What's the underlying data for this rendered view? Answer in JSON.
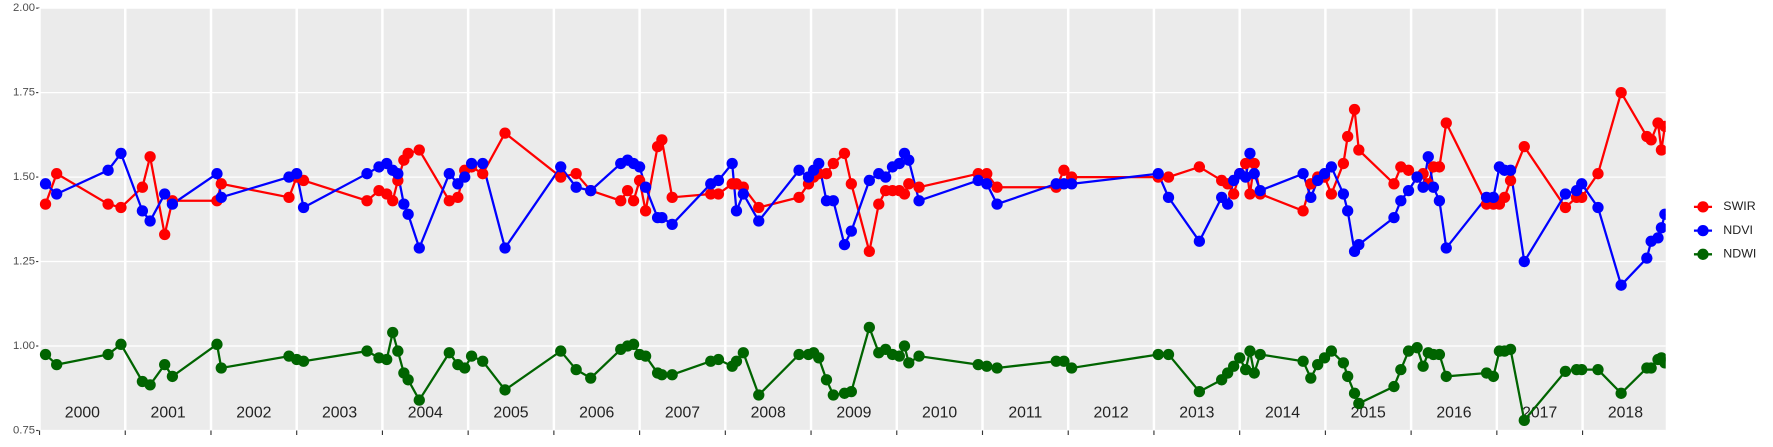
{
  "chart_data": {
    "type": "line",
    "x": [
      2000.07,
      2000.2,
      2000.8,
      2000.95,
      2001.2,
      2001.29,
      2001.46,
      2001.55,
      2002.07,
      2002.12,
      2002.91,
      2003.0,
      2003.08,
      2003.82,
      2003.96,
      2004.05,
      2004.12,
      2004.18,
      2004.25,
      2004.3,
      2004.43,
      2004.78,
      2004.88,
      2004.96,
      2005.04,
      2005.17,
      2005.43,
      2006.08,
      2006.26,
      2006.43,
      2006.78,
      2006.86,
      2006.93,
      2007.0,
      2007.07,
      2007.21,
      2007.26,
      2007.38,
      2007.83,
      2007.92,
      2008.08,
      2008.13,
      2008.21,
      2008.39,
      2008.86,
      2008.97,
      2009.03,
      2009.09,
      2009.18,
      2009.26,
      2009.39,
      2009.47,
      2009.68,
      2009.79,
      2009.87,
      2009.95,
      2010.03,
      2010.09,
      2010.14,
      2010.26,
      2010.95,
      2011.05,
      2011.17,
      2011.86,
      2011.95,
      2012.04,
      2013.05,
      2013.17,
      2013.53,
      2013.79,
      2013.86,
      2013.93,
      2014.0,
      2014.07,
      2014.12,
      2014.17,
      2014.24,
      2014.74,
      2014.83,
      2014.91,
      2014.99,
      2015.07,
      2015.21,
      2015.26,
      2015.34,
      2015.39,
      2015.8,
      2015.88,
      2015.97,
      2016.07,
      2016.14,
      2016.2,
      2016.26,
      2016.33,
      2016.41,
      2016.88,
      2016.96,
      2017.03,
      2017.09,
      2017.16,
      2017.32,
      2017.8,
      2017.93,
      2017.99,
      2018.18,
      2018.45,
      2018.75,
      2018.8,
      2018.88,
      2018.92,
      2018.96
    ],
    "series": [
      {
        "name": "SWIR",
        "color": "#ff0000",
        "values": [
          1.42,
          1.51,
          1.42,
          1.41,
          1.47,
          1.56,
          1.33,
          1.43,
          1.43,
          1.48,
          1.44,
          1.5,
          1.49,
          1.43,
          1.46,
          1.45,
          1.43,
          1.49,
          1.55,
          1.57,
          1.58,
          1.43,
          1.44,
          1.52,
          1.53,
          1.51,
          1.63,
          1.5,
          1.51,
          1.46,
          1.43,
          1.46,
          1.43,
          1.49,
          1.4,
          1.59,
          1.61,
          1.44,
          1.45,
          1.45,
          1.48,
          1.48,
          1.47,
          1.41,
          1.44,
          1.48,
          1.5,
          1.51,
          1.51,
          1.54,
          1.57,
          1.48,
          1.28,
          1.42,
          1.46,
          1.46,
          1.46,
          1.45,
          1.48,
          1.47,
          1.51,
          1.51,
          1.47,
          1.47,
          1.52,
          1.5,
          1.5,
          1.5,
          1.53,
          1.49,
          1.48,
          1.45,
          1.51,
          1.54,
          1.45,
          1.54,
          1.45,
          1.4,
          1.48,
          1.5,
          1.5,
          1.45,
          1.54,
          1.62,
          1.7,
          1.58,
          1.48,
          1.53,
          1.52,
          1.5,
          1.51,
          1.48,
          1.53,
          1.53,
          1.66,
          1.42,
          1.42,
          1.42,
          1.44,
          1.49,
          1.59,
          1.41,
          1.44,
          1.44,
          1.51,
          1.75,
          1.62,
          1.61,
          1.66,
          1.58,
          1.65
        ]
      },
      {
        "name": "NDVI",
        "color": "#0000ff",
        "values": [
          1.48,
          1.45,
          1.52,
          1.57,
          1.4,
          1.37,
          1.45,
          1.42,
          1.51,
          1.44,
          1.5,
          1.51,
          1.41,
          1.51,
          1.53,
          1.54,
          1.52,
          1.51,
          1.42,
          1.39,
          1.29,
          1.51,
          1.48,
          1.5,
          1.54,
          1.54,
          1.29,
          1.53,
          1.47,
          1.46,
          1.54,
          1.55,
          1.54,
          1.53,
          1.47,
          1.38,
          1.38,
          1.36,
          1.48,
          1.49,
          1.54,
          1.4,
          1.45,
          1.37,
          1.52,
          1.5,
          1.52,
          1.54,
          1.43,
          1.43,
          1.3,
          1.34,
          1.49,
          1.51,
          1.5,
          1.53,
          1.54,
          1.57,
          1.55,
          1.43,
          1.49,
          1.48,
          1.42,
          1.48,
          1.48,
          1.48,
          1.51,
          1.44,
          1.31,
          1.44,
          1.42,
          1.49,
          1.51,
          1.5,
          1.57,
          1.51,
          1.46,
          1.51,
          1.44,
          1.49,
          1.51,
          1.53,
          1.45,
          1.4,
          1.28,
          1.3,
          1.38,
          1.43,
          1.46,
          1.5,
          1.47,
          1.56,
          1.47,
          1.43,
          1.29,
          1.44,
          1.44,
          1.53,
          1.52,
          1.52,
          1.25,
          1.45,
          1.46,
          1.48,
          1.41,
          1.18,
          1.26,
          1.31,
          1.32,
          1.35,
          1.39
        ]
      },
      {
        "name": "NDWI",
        "color": "#006400",
        "values": [
          0.975,
          0.945,
          0.975,
          1.005,
          0.895,
          0.885,
          0.945,
          0.91,
          1.005,
          0.935,
          0.97,
          0.96,
          0.955,
          0.985,
          0.965,
          0.96,
          1.04,
          0.985,
          0.92,
          0.9,
          0.84,
          0.98,
          0.945,
          0.935,
          0.97,
          0.955,
          0.87,
          0.985,
          0.93,
          0.905,
          0.99,
          1.0,
          1.005,
          0.975,
          0.97,
          0.92,
          0.915,
          0.915,
          0.955,
          0.96,
          0.94,
          0.955,
          0.98,
          0.855,
          0.975,
          0.975,
          0.98,
          0.965,
          0.9,
          0.855,
          0.86,
          0.865,
          1.055,
          0.98,
          0.99,
          0.975,
          0.97,
          1.0,
          0.95,
          0.97,
          0.945,
          0.94,
          0.935,
          0.955,
          0.955,
          0.935,
          0.975,
          0.975,
          0.865,
          0.9,
          0.92,
          0.94,
          0.965,
          0.93,
          0.985,
          0.92,
          0.975,
          0.955,
          0.905,
          0.945,
          0.965,
          0.985,
          0.95,
          0.91,
          0.86,
          0.83,
          0.88,
          0.93,
          0.985,
          0.995,
          0.94,
          0.98,
          0.975,
          0.975,
          0.91,
          0.92,
          0.91,
          0.985,
          0.985,
          0.99,
          0.78,
          0.925,
          0.93,
          0.93,
          0.93,
          0.86,
          0.935,
          0.935,
          0.96,
          0.965,
          0.95
        ]
      }
    ],
    "xlim": [
      2000,
      2018.97
    ],
    "xticks": [
      {
        "value": 2000,
        "label": "2000"
      },
      {
        "value": 2001,
        "label": "2001"
      },
      {
        "value": 2002,
        "label": "2002"
      },
      {
        "value": 2003,
        "label": "2003"
      },
      {
        "value": 2004,
        "label": "2004"
      },
      {
        "value": 2005,
        "label": "2005"
      },
      {
        "value": 2006,
        "label": "2006"
      },
      {
        "value": 2007,
        "label": "2007"
      },
      {
        "value": 2008,
        "label": "2008"
      },
      {
        "value": 2009,
        "label": "2009"
      },
      {
        "value": 2010,
        "label": "2010"
      },
      {
        "value": 2011,
        "label": "2011"
      },
      {
        "value": 2012,
        "label": "2012"
      },
      {
        "value": 2013,
        "label": "2013"
      },
      {
        "value": 2014,
        "label": "2014"
      },
      {
        "value": 2015,
        "label": "2015"
      },
      {
        "value": 2016,
        "label": "2016"
      },
      {
        "value": 2017,
        "label": "2017"
      },
      {
        "value": 2018,
        "label": "2018"
      }
    ],
    "ylim": [
      0.75,
      2.0
    ],
    "yticks": [
      0.75,
      {
        "value": 1.0,
        "label": "1.00"
      },
      1.25,
      {
        "value": 1.5,
        "label": "1.50"
      },
      1.75,
      {
        "value": 2.0,
        "label": "2.00"
      }
    ],
    "grid": true,
    "legend": "right"
  }
}
